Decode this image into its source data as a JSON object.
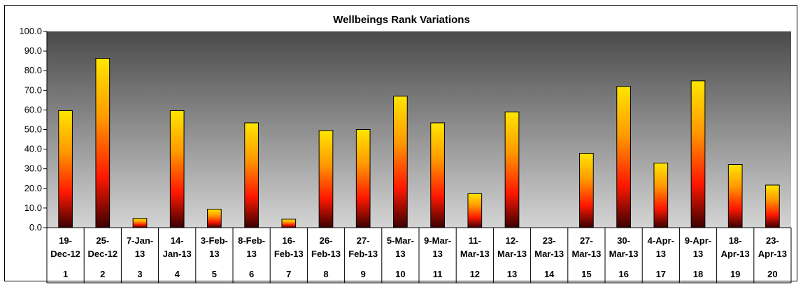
{
  "chart_data": {
    "type": "bar",
    "title": "Wellbeings Rank Variations",
    "xlabel": "",
    "ylabel": "",
    "ylim": [
      0,
      100
    ],
    "ytick_step": 10,
    "ytick_labels": [
      "0.0",
      "10.0",
      "20.0",
      "30.0",
      "40.0",
      "50.0",
      "60.0",
      "70.0",
      "80.0",
      "90.0",
      "100.0"
    ],
    "grid": false,
    "legend": "none",
    "categories": [
      {
        "date": [
          "19-",
          "Dec-12"
        ],
        "index": "1"
      },
      {
        "date": [
          "25-",
          "Dec-12"
        ],
        "index": "2"
      },
      {
        "date": [
          "7-Jan-",
          "13"
        ],
        "index": "3"
      },
      {
        "date": [
          "14-",
          "Jan-13"
        ],
        "index": "4"
      },
      {
        "date": [
          "3-Feb-",
          "13"
        ],
        "index": "5"
      },
      {
        "date": [
          "8-Feb-",
          "13"
        ],
        "index": "6"
      },
      {
        "date": [
          "16-",
          "Feb-13"
        ],
        "index": "7"
      },
      {
        "date": [
          "26-",
          "Feb-13"
        ],
        "index": "8"
      },
      {
        "date": [
          "27-",
          "Feb-13"
        ],
        "index": "9"
      },
      {
        "date": [
          "5-Mar-",
          "13"
        ],
        "index": "10"
      },
      {
        "date": [
          "9-Mar-",
          "13"
        ],
        "index": "11"
      },
      {
        "date": [
          "11-",
          "Mar-13"
        ],
        "index": "12"
      },
      {
        "date": [
          "12-",
          "Mar-13"
        ],
        "index": "13"
      },
      {
        "date": [
          "23-",
          "Mar-13"
        ],
        "index": "14"
      },
      {
        "date": [
          "27-",
          "Mar-13"
        ],
        "index": "15"
      },
      {
        "date": [
          "30-",
          "Mar-13"
        ],
        "index": "16"
      },
      {
        "date": [
          "4-Apr-",
          "13"
        ],
        "index": "17"
      },
      {
        "date": [
          "9-Apr-",
          "13"
        ],
        "index": "18"
      },
      {
        "date": [
          "18-",
          "Apr-13"
        ],
        "index": "19"
      },
      {
        "date": [
          "23-",
          "Apr-13"
        ],
        "index": "20"
      }
    ],
    "values": [
      59.6,
      86.3,
      4.7,
      59.6,
      9.4,
      53.4,
      4.3,
      49.5,
      50.0,
      67.0,
      53.4,
      17.3,
      59.0,
      0,
      37.9,
      72.0,
      32.9,
      74.8,
      32.2,
      21.7
    ],
    "colors": {
      "plot_top": "#4a4a4a",
      "plot_bottom": "#d4d4d4",
      "bar_top": "#ffe600",
      "bar_mid_high": "#ff9900",
      "bar_mid": "#ff1800",
      "bar_bottom": "#3a0000",
      "bar_outline": "#000000"
    }
  }
}
